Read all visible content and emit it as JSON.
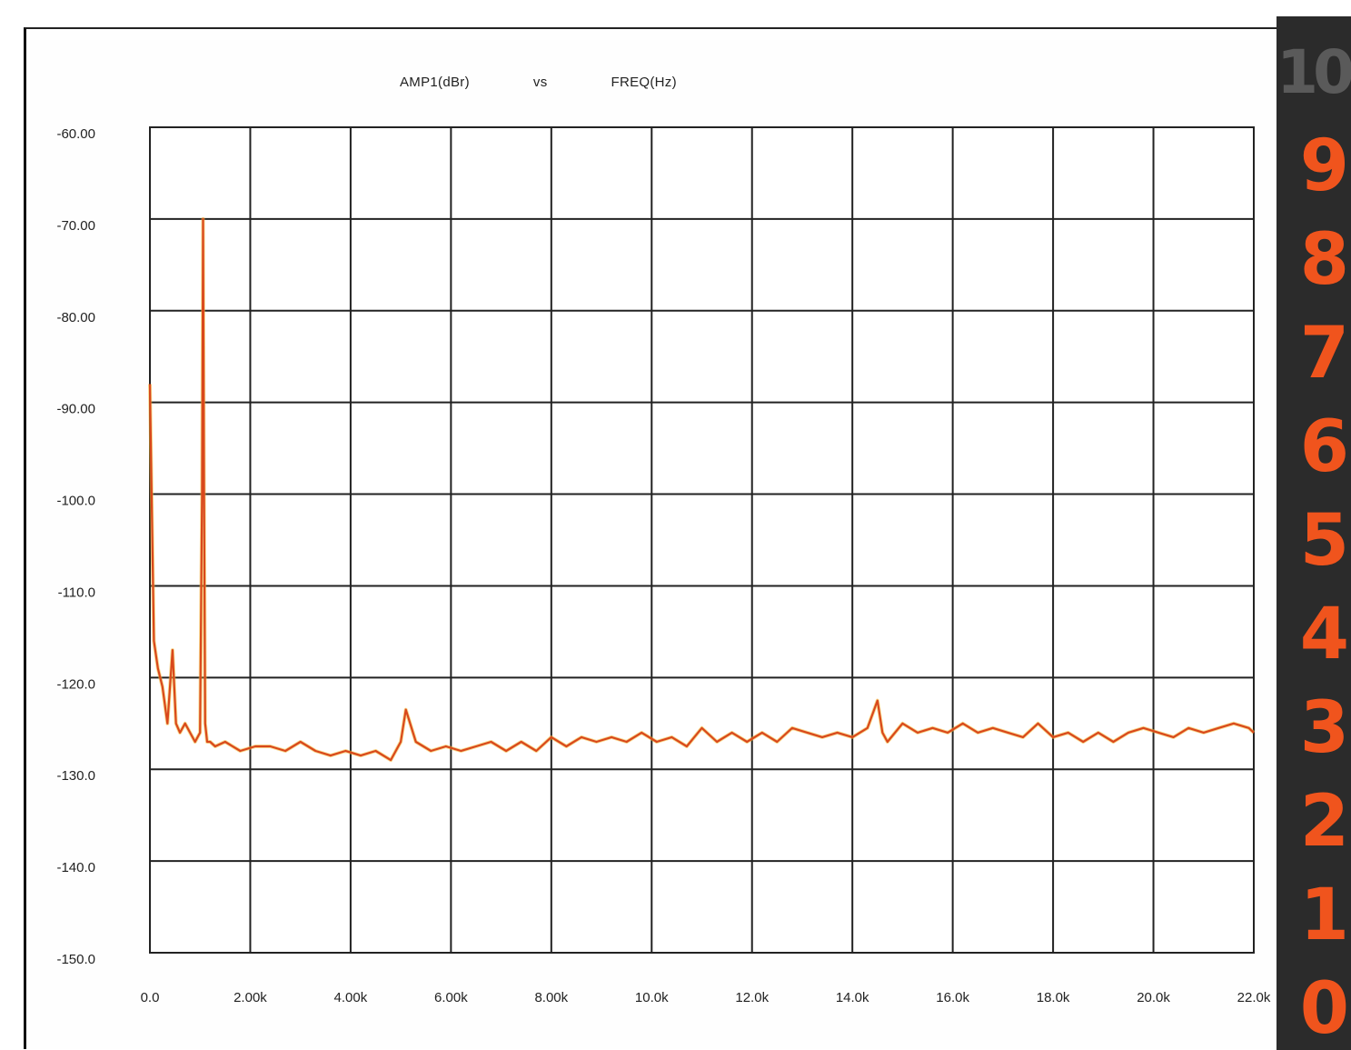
{
  "chart_data": {
    "type": "line",
    "title": "AMP1(dBr) vs FREQ(Hz)",
    "title_parts": {
      "y": "AMP1(dBr)",
      "vs": "vs",
      "x": "FREQ(Hz)"
    },
    "xlabel": "",
    "ylabel": "",
    "xlim": [
      0,
      22000
    ],
    "ylim": [
      -150,
      -60
    ],
    "grid": true,
    "legend": "none",
    "x_tick_labels": [
      "0.0",
      "2.00k",
      "4.00k",
      "6.00k",
      "8.00k",
      "10.0k",
      "12.0k",
      "14.0k",
      "16.0k",
      "18.0k",
      "20.0k",
      "22.0k"
    ],
    "y_tick_labels": [
      "-60.00",
      "-70.00",
      "-80.00",
      "-90.00",
      "-100.0",
      "-110.0",
      "-120.0",
      "-130.0",
      "-140.0",
      "-150.0"
    ],
    "series": [
      {
        "color": "#d9481c",
        "x": [
          0,
          80,
          160,
          250,
          350,
          450,
          520,
          600,
          700,
          800,
          900,
          1000,
          1040,
          1060,
          1080,
          1100,
          1140,
          1200,
          1300,
          1500,
          1800,
          2100,
          2400,
          2700,
          3000,
          3300,
          3600,
          3900,
          4200,
          4500,
          4800,
          5000,
          5100,
          5300,
          5600,
          5900,
          6200,
          6500,
          6800,
          7100,
          7400,
          7700,
          8000,
          8300,
          8600,
          8900,
          9200,
          9500,
          9800,
          10100,
          10400,
          10700,
          11000,
          11300,
          11600,
          11900,
          12200,
          12500,
          12800,
          13100,
          13400,
          13700,
          14000,
          14300,
          14500,
          14600,
          14700,
          15000,
          15300,
          15600,
          15900,
          16200,
          16500,
          16800,
          17100,
          17400,
          17700,
          18000,
          18300,
          18600,
          18900,
          19200,
          19500,
          19800,
          20100,
          20400,
          20700,
          21000,
          21300,
          21600,
          21900,
          22000
        ],
        "y": [
          -88,
          -116,
          -119,
          -121,
          -125,
          -117,
          -125,
          -126,
          -125,
          -126,
          -127,
          -126,
          -100,
          -70,
          -100,
          -125,
          -127,
          -127,
          -127.5,
          -127,
          -128,
          -127.5,
          -127.5,
          -128,
          -127,
          -128,
          -128.5,
          -128,
          -128.5,
          -128,
          -129,
          -127,
          -123.5,
          -127,
          -128,
          -127.5,
          -128,
          -127.5,
          -127,
          -128,
          -127,
          -128,
          -126.5,
          -127.5,
          -126.5,
          -127,
          -126.5,
          -127,
          -126,
          -127,
          -126.5,
          -127.5,
          -125.5,
          -127,
          -126,
          -127,
          -126,
          -127,
          -125.5,
          -126,
          -126.5,
          -126,
          -126.5,
          -125.5,
          -122.5,
          -126,
          -127,
          -125,
          -126,
          -125.5,
          -126,
          -125,
          -126,
          -125.5,
          -126,
          -126.5,
          -125,
          -126.5,
          -126,
          -127,
          -126,
          -127,
          -126,
          -125.5,
          -126,
          -126.5,
          -125.5,
          -126,
          -125.5,
          -125,
          -125.5,
          -126
        ]
      }
    ]
  },
  "side_ruler": {
    "numbers": [
      "10",
      "9",
      "8",
      "7",
      "6",
      "5",
      "4",
      "3",
      "2",
      "1",
      "0"
    ]
  }
}
